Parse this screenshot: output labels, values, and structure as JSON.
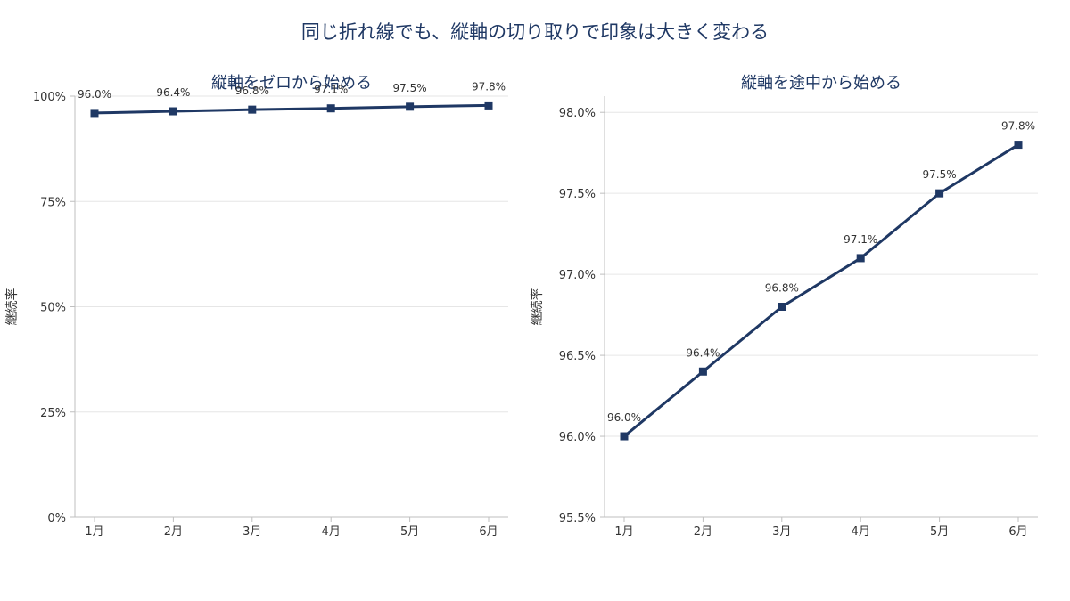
{
  "figure": {
    "title": "同じ折れ線でも、縦軸の切り取りで印象は大きく変わる"
  },
  "colors": {
    "line": "#1f3864",
    "title": "#1f3864",
    "text": "#333333",
    "grid": "#e6e6e6",
    "axis": "#bfbfbf"
  },
  "chart_data": [
    {
      "type": "line",
      "title": "縦軸をゼロから始める",
      "xlabel": "",
      "ylabel": "継続率",
      "categories": [
        "1月",
        "2月",
        "3月",
        "4月",
        "5月",
        "6月"
      ],
      "series": [
        {
          "values": [
            96.0,
            96.4,
            96.8,
            97.1,
            97.5,
            97.8
          ],
          "marker": "square"
        }
      ],
      "data_labels": [
        "96.0%",
        "96.4%",
        "96.8%",
        "97.1%",
        "97.5%",
        "97.8%"
      ],
      "ylim": [
        0,
        100
      ],
      "yticks": [
        0,
        25,
        50,
        75,
        100
      ],
      "ytick_labels": [
        "0%",
        "25%",
        "50%",
        "75%",
        "100%"
      ],
      "grid": true,
      "legend": "none"
    },
    {
      "type": "line",
      "title": "縦軸を途中から始める",
      "xlabel": "",
      "ylabel": "継続率",
      "categories": [
        "1月",
        "2月",
        "3月",
        "4月",
        "5月",
        "6月"
      ],
      "series": [
        {
          "values": [
            96.0,
            96.4,
            96.8,
            97.1,
            97.5,
            97.8
          ],
          "marker": "square"
        }
      ],
      "data_labels": [
        "96.0%",
        "96.4%",
        "96.8%",
        "97.1%",
        "97.5%",
        "97.8%"
      ],
      "ylim": [
        95.5,
        98.1
      ],
      "yticks": [
        95.5,
        96.0,
        96.5,
        97.0,
        97.5,
        98.0
      ],
      "ytick_labels": [
        "95.5%",
        "96.0%",
        "96.5%",
        "97.0%",
        "97.5%",
        "98.0%"
      ],
      "grid": true,
      "legend": "none"
    }
  ]
}
